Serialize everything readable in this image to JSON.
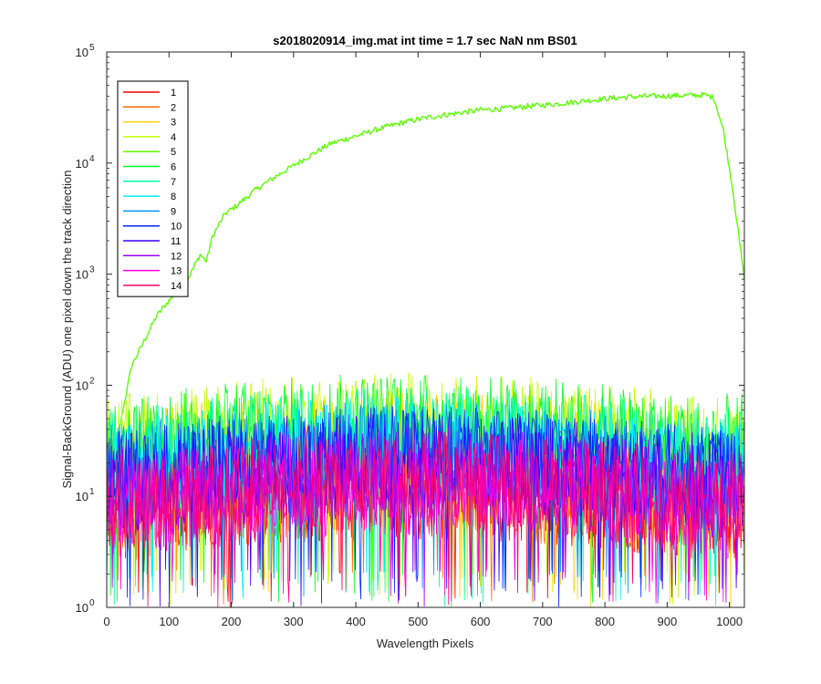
{
  "chart_data": {
    "type": "line",
    "title": "s2018020914_img.mat int time = 1.7 sec  NaN nm BS01",
    "xlabel": "Wavelength Pixels",
    "ylabel": "Signal-BackGround (ADU) one pixel down the track direction",
    "xlim": [
      0,
      1024
    ],
    "ylim": [
      1,
      100000
    ],
    "y_scale": "log",
    "x_ticks": [
      0,
      100,
      200,
      300,
      400,
      500,
      600,
      700,
      800,
      900,
      1000
    ],
    "x_tick_labels": [
      "0",
      "100",
      "200",
      "300",
      "400",
      "500",
      "600",
      "700",
      "800",
      "900",
      "1000"
    ],
    "y_ticks": [
      1,
      10,
      100,
      1000,
      10000,
      100000
    ],
    "y_tick_labels": [
      {
        "base": "10",
        "exp": "0"
      },
      {
        "base": "10",
        "exp": "1"
      },
      {
        "base": "10",
        "exp": "2"
      },
      {
        "base": "10",
        "exp": "3"
      },
      {
        "base": "10",
        "exp": "4"
      },
      {
        "base": "10",
        "exp": "5"
      }
    ],
    "grid": false,
    "legend_position": "top-left",
    "series": [
      {
        "name": "1",
        "color": "#ff0000",
        "profile": "noise",
        "typical": 10
      },
      {
        "name": "2",
        "color": "#ff6a00",
        "profile": "noise",
        "typical": 10
      },
      {
        "name": "3",
        "color": "#ffd400",
        "profile": "noise",
        "typical": 28
      },
      {
        "name": "4",
        "color": "#c4ff00",
        "profile": "noise",
        "typical": 40
      },
      {
        "name": "5",
        "color": "#5aff00",
        "profile": "signal",
        "points": [
          [
            0,
            4
          ],
          [
            20,
            40
          ],
          [
            40,
            150
          ],
          [
            60,
            250
          ],
          [
            80,
            420
          ],
          [
            100,
            580
          ],
          [
            130,
            900
          ],
          [
            150,
            1500
          ],
          [
            160,
            1300
          ],
          [
            170,
            2200
          ],
          [
            190,
            3500
          ],
          [
            210,
            4200
          ],
          [
            240,
            5800
          ],
          [
            270,
            7500
          ],
          [
            300,
            9500
          ],
          [
            330,
            12000
          ],
          [
            360,
            15000
          ],
          [
            400,
            17500
          ],
          [
            440,
            20500
          ],
          [
            480,
            23500
          ],
          [
            520,
            26000
          ],
          [
            560,
            28000
          ],
          [
            600,
            30000
          ],
          [
            640,
            31000
          ],
          [
            680,
            32500
          ],
          [
            720,
            34000
          ],
          [
            760,
            36000
          ],
          [
            800,
            38000
          ],
          [
            840,
            39500
          ],
          [
            880,
            40000
          ],
          [
            920,
            40500
          ],
          [
            960,
            41000
          ],
          [
            975,
            39000
          ],
          [
            990,
            20000
          ],
          [
            1005,
            6000
          ],
          [
            1024,
            900
          ]
        ]
      },
      {
        "name": "6",
        "color": "#00ff1e",
        "profile": "noise",
        "typical": 40
      },
      {
        "name": "7",
        "color": "#00ffa0",
        "profile": "noise",
        "typical": 30
      },
      {
        "name": "8",
        "color": "#00f0ff",
        "profile": "noise",
        "typical": 25
      },
      {
        "name": "9",
        "color": "#0096ff",
        "profile": "noise",
        "typical": 22
      },
      {
        "name": "10",
        "color": "#0028ff",
        "profile": "noise",
        "typical": 20
      },
      {
        "name": "11",
        "color": "#3c00ff",
        "profile": "noise",
        "typical": 18
      },
      {
        "name": "12",
        "color": "#a000ff",
        "profile": "noise",
        "typical": 14
      },
      {
        "name": "13",
        "color": "#ff00dc",
        "profile": "noise",
        "typical": 11
      },
      {
        "name": "14",
        "color": "#ff006e",
        "profile": "noise",
        "typical": 12
      }
    ]
  }
}
